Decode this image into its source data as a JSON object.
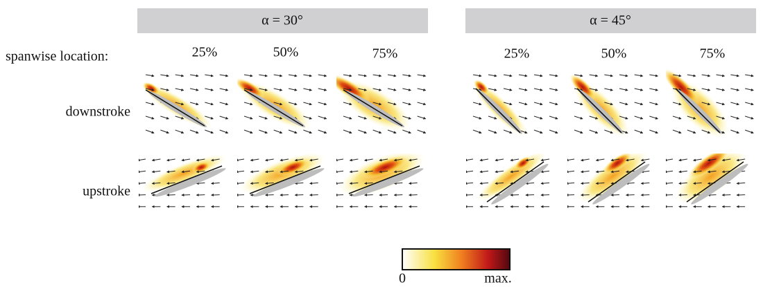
{
  "headers": [
    "α = 30°",
    "α = 45°"
  ],
  "spanwise_label": "spanwise location:",
  "columns": [
    [
      "25%",
      "50%",
      "75%"
    ],
    [
      "25%",
      "50%",
      "75%"
    ]
  ],
  "rows": [
    "downstroke",
    "upstroke"
  ],
  "colorbar": {
    "min": "0",
    "max": "max."
  }
}
